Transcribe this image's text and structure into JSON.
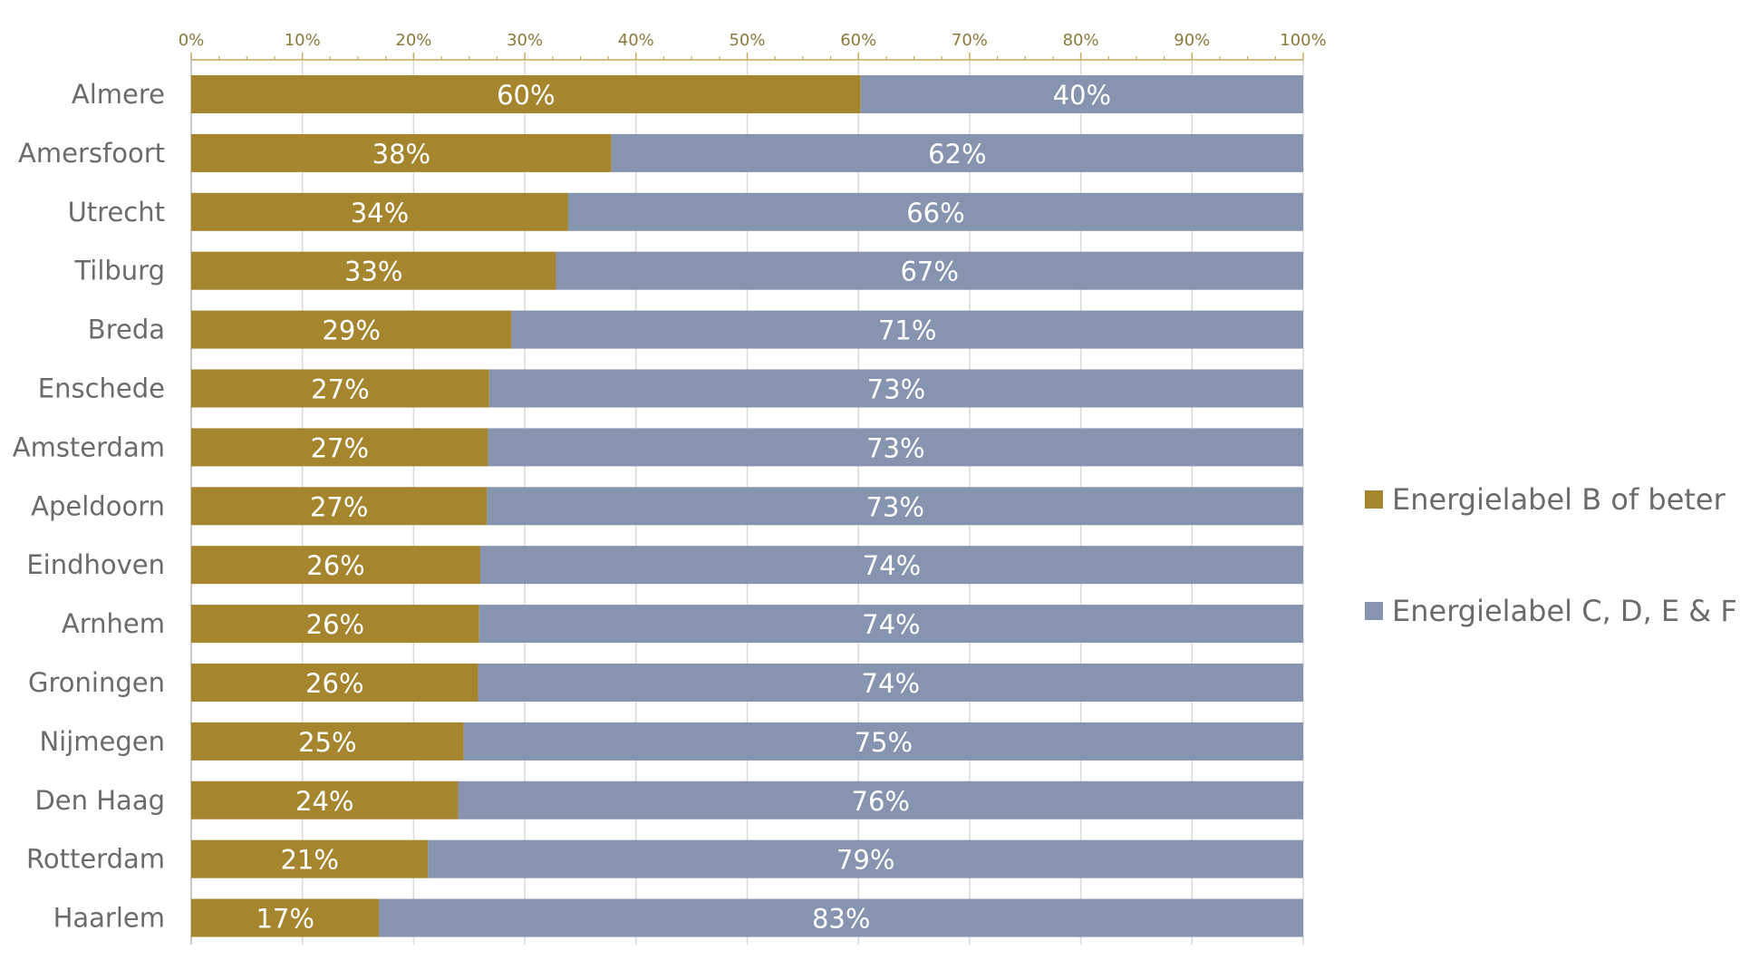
{
  "chart_data": {
    "type": "bar",
    "orientation": "horizontal",
    "stacked": true,
    "title": "",
    "xlabel": "",
    "ylabel": "",
    "xlim": [
      0,
      100
    ],
    "x_ticks": [
      0,
      10,
      20,
      30,
      40,
      50,
      60,
      70,
      80,
      90,
      100
    ],
    "x_tick_labels": [
      "0%",
      "10%",
      "20%",
      "30%",
      "40%",
      "50%",
      "60%",
      "70%",
      "80%",
      "90%",
      "100%"
    ],
    "x_axis_position": "top",
    "grid": "vertical",
    "legend_position": "right",
    "categories": [
      "Almere",
      "Amersfoort",
      "Utrecht",
      "Tilburg",
      "Breda",
      "Enschede",
      "Amsterdam",
      "Apeldoorn",
      "Eindhoven",
      "Arnhem",
      "Groningen",
      "Nijmegen",
      "Den Haag",
      "Rotterdam",
      "Haarlem"
    ],
    "series": [
      {
        "name": "Energielabel B of beter",
        "color": "#a5862f",
        "values": [
          60.2,
          37.8,
          33.9,
          32.8,
          28.8,
          26.8,
          26.7,
          26.6,
          26.0,
          25.9,
          25.8,
          24.5,
          24.0,
          21.3,
          16.9
        ],
        "labels": [
          "60%",
          "38%",
          "34%",
          "33%",
          "29%",
          "27%",
          "27%",
          "27%",
          "26%",
          "26%",
          "26%",
          "25%",
          "24%",
          "21%",
          "17%"
        ]
      },
      {
        "name": "Energielabel C, D, E &  F",
        "color": "#8694b0",
        "values": [
          39.8,
          62.2,
          66.1,
          67.2,
          71.2,
          73.2,
          73.3,
          73.4,
          74.0,
          74.1,
          74.2,
          75.5,
          76.0,
          78.7,
          83.1
        ],
        "labels": [
          "40%",
          "62%",
          "66%",
          "67%",
          "71%",
          "73%",
          "73%",
          "73%",
          "74%",
          "74%",
          "74%",
          "75%",
          "76%",
          "79%",
          "83%"
        ]
      }
    ]
  }
}
